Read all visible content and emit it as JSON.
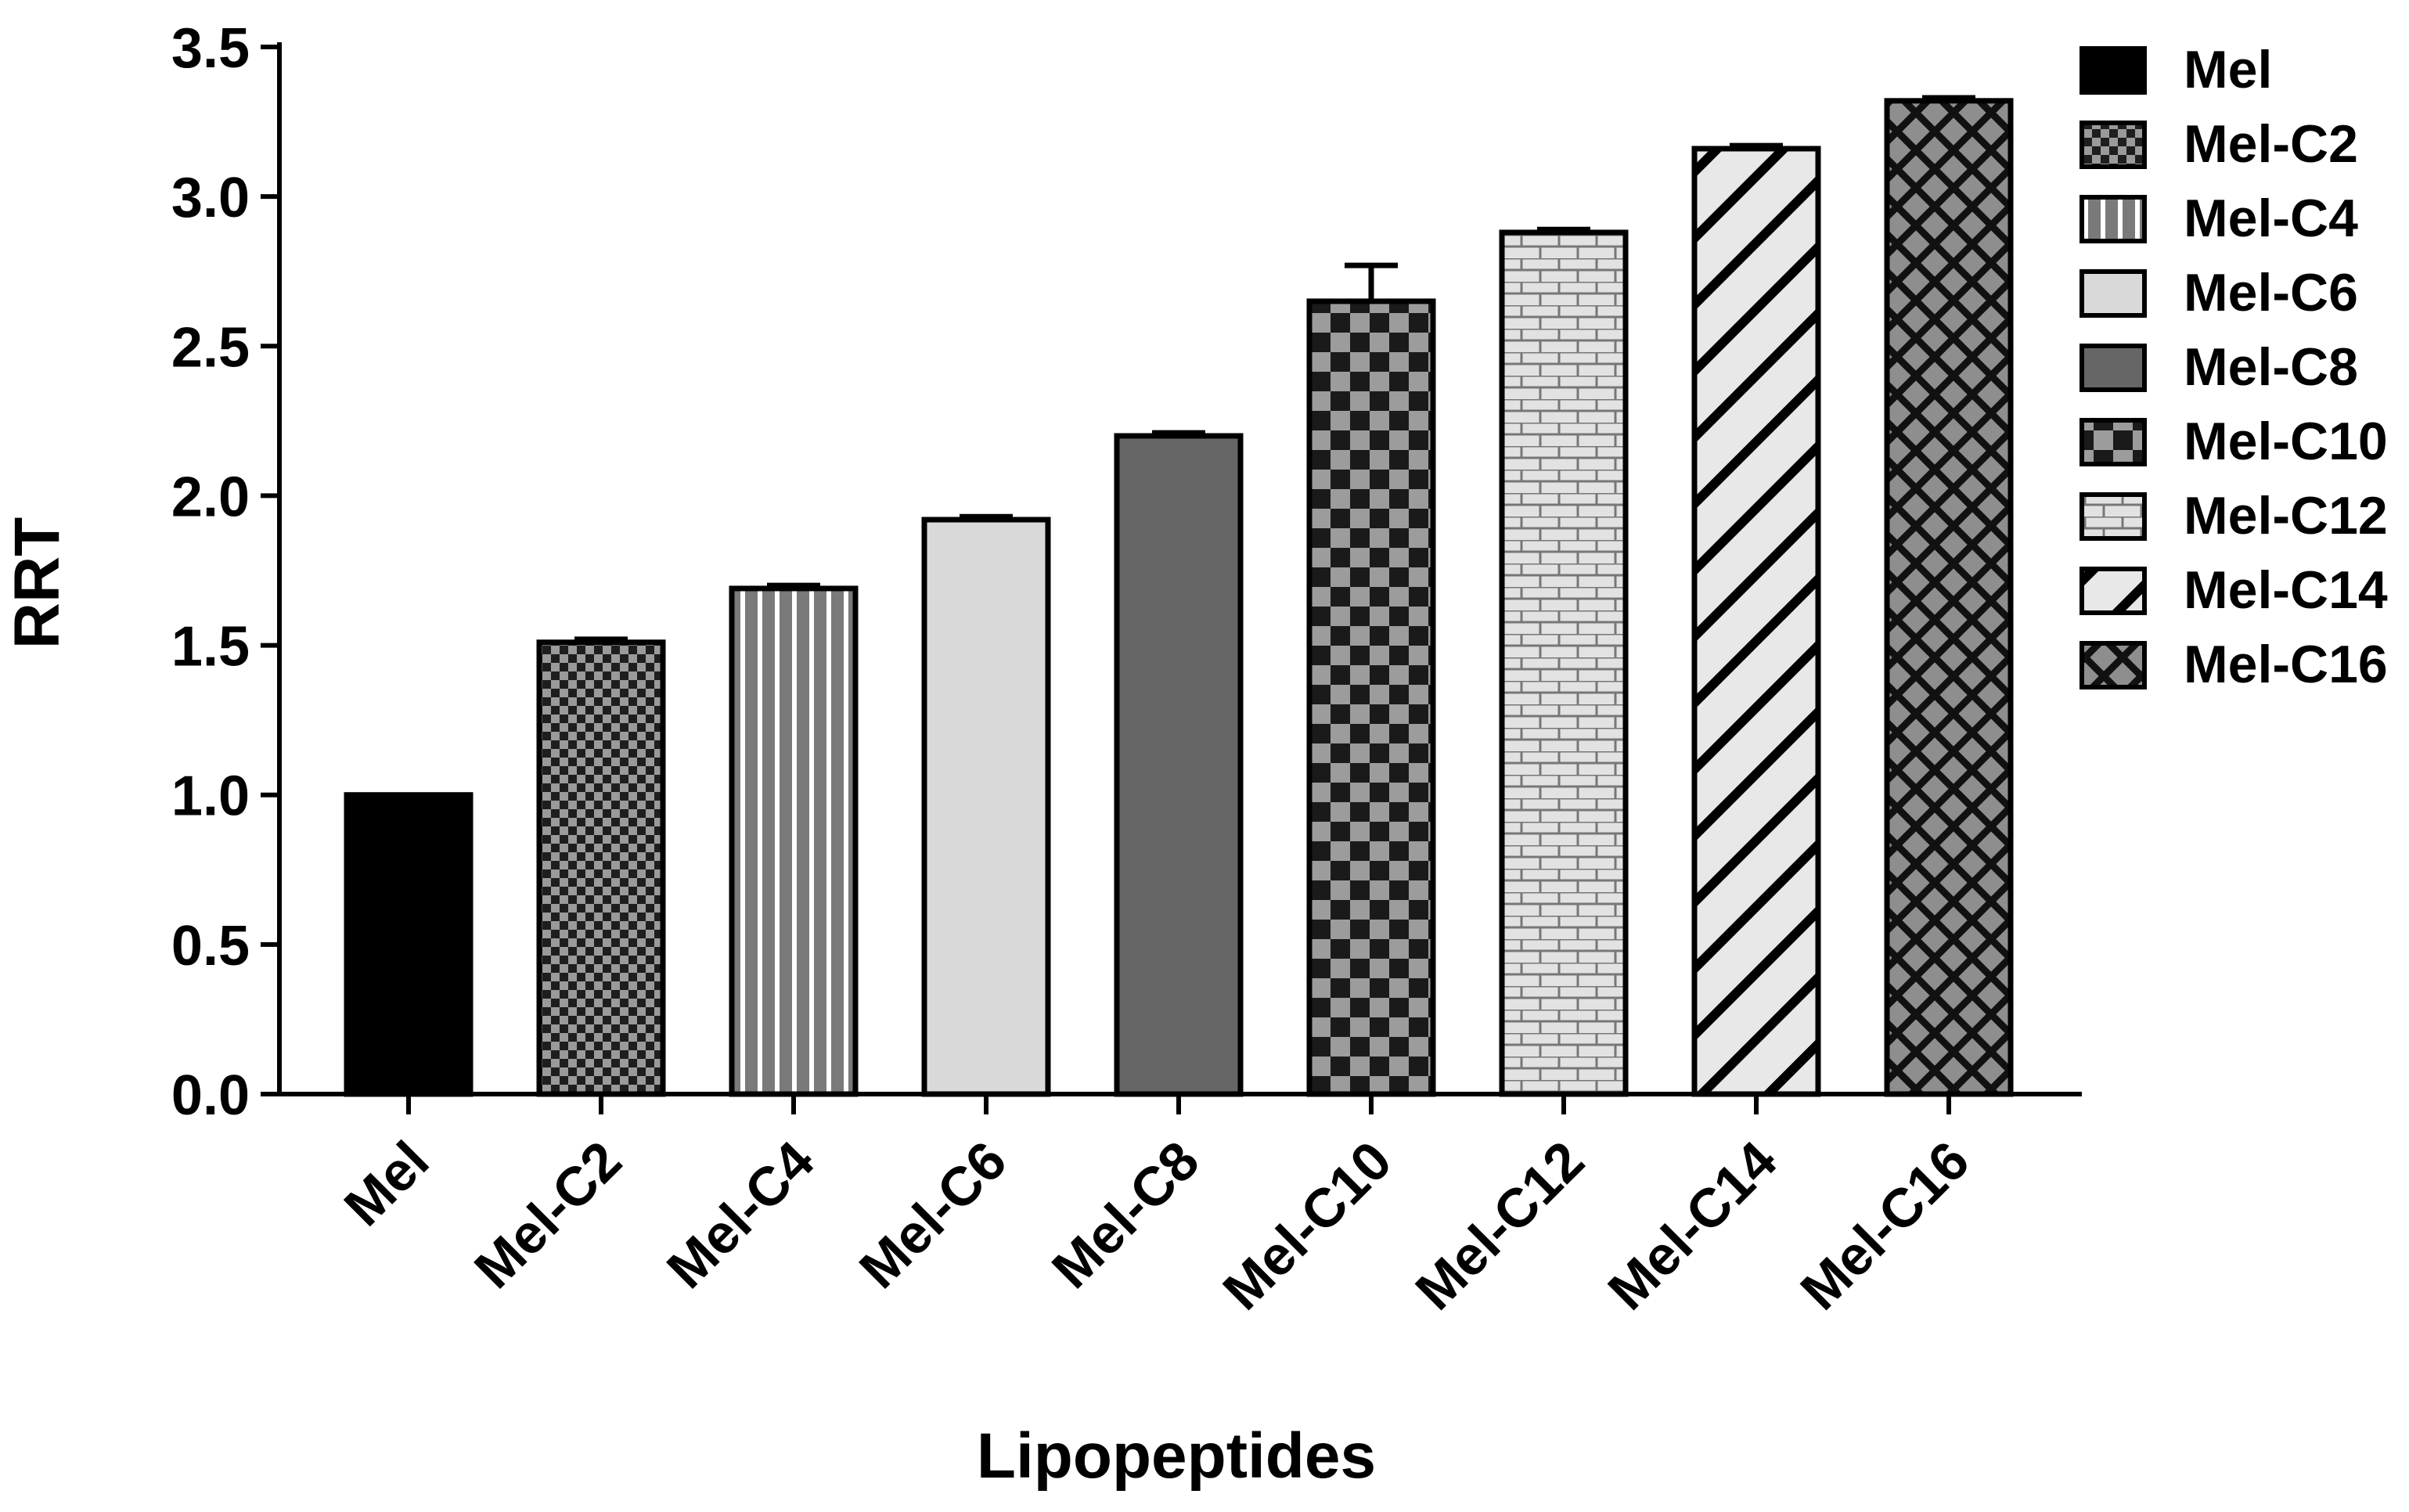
{
  "chart_data": {
    "type": "bar",
    "title": "",
    "xlabel": "Lipopeptides",
    "ylabel": "RRT",
    "ylim": [
      0,
      3.5
    ],
    "yticks": [
      "0.0",
      "0.5",
      "1.0",
      "1.5",
      "2.0",
      "2.5",
      "3.0",
      "3.5"
    ],
    "categories": [
      "Mel",
      "Mel-C2",
      "Mel-C4",
      "Mel-C6",
      "Mel-C8",
      "Mel-C10",
      "Mel-C12",
      "Mel-C14",
      "Mel-C16"
    ],
    "values": [
      1.0,
      1.51,
      1.69,
      1.92,
      2.2,
      2.65,
      2.88,
      3.16,
      3.32
    ],
    "errors": [
      0,
      0.01,
      0.01,
      0.01,
      0.01,
      0.12,
      0.01,
      0.01,
      0.01
    ],
    "legend_position": "right",
    "series_styles": [
      {
        "pattern": "solid-black",
        "fill": "#000000"
      },
      {
        "pattern": "fine-checker",
        "fill": "#8c8c8c"
      },
      {
        "pattern": "vertical-stripes",
        "fill": "#7a7a7a"
      },
      {
        "pattern": "solid-light",
        "fill": "#d9d9d9"
      },
      {
        "pattern": "solid-dark",
        "fill": "#666666"
      },
      {
        "pattern": "large-checker",
        "fill": "#999999"
      },
      {
        "pattern": "brick",
        "fill": "#e0e0e0"
      },
      {
        "pattern": "diagonal-stripes",
        "fill": "#e6e6e6"
      },
      {
        "pattern": "diamond-crosshatch",
        "fill": "#8a8a8a"
      }
    ],
    "grid": false
  }
}
